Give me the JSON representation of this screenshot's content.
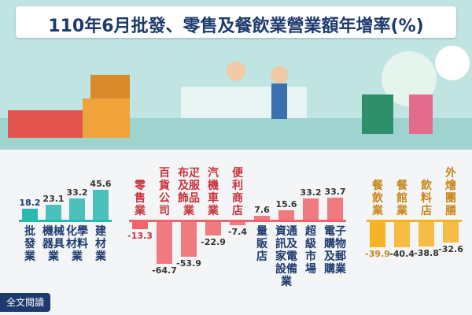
{
  "title": "110年6月批發、零售及餐飲業營業額年增率(%)",
  "button": "全文閱讀",
  "chart_data": {
    "type": "bar",
    "groups": [
      {
        "color": "#2bb8b0",
        "label_color": "#1d3a6e",
        "categories": [
          "批發業",
          "機械器具業",
          "化學材料業",
          "建材業"
        ],
        "values": [
          18.2,
          23.1,
          33.2,
          45.6
        ]
      },
      {
        "color": "#f0646b",
        "label_color": "#c8323a",
        "categories": [
          "零售業",
          "百貨公司",
          "布疋及服飾品業",
          "汽機車業",
          "便利商店",
          "量販店",
          "資通訊及家電設備業",
          "超級市場",
          "電子購物及郵購業"
        ],
        "values": [
          -13.3,
          -64.7,
          -53.9,
          -22.9,
          -7.4,
          7.6,
          15.6,
          33.2,
          33.7
        ]
      },
      {
        "color": "#f5b325",
        "label_color": "#c8861a",
        "categories": [
          "餐飲業",
          "餐館業",
          "飲料店",
          "外燴團膳"
        ],
        "values": [
          -39.9,
          -40.4,
          -38.8,
          -32.6
        ]
      }
    ]
  }
}
